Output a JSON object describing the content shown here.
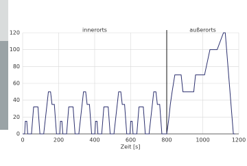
{
  "chart_data": {
    "type": "line",
    "x_label": "Zeit [s]",
    "annotations": [
      {
        "text": "innerorts",
        "x": 400
      },
      {
        "text": "außerorts",
        "x": 1000
      }
    ],
    "divider_x": 800,
    "series": [
      {
        "color": "#2b2f6e",
        "x": [
          0,
          11,
          15,
          23,
          28,
          49,
          61,
          85,
          96,
          117,
          143,
          155,
          163,
          176,
          188,
          195,
          206,
          210,
          218,
          223,
          244,
          256,
          280,
          291,
          312,
          338,
          350,
          358,
          371,
          383,
          390,
          401,
          405,
          413,
          418,
          439,
          451,
          475,
          486,
          507,
          533,
          545,
          553,
          566,
          578,
          585,
          596,
          600,
          608,
          613,
          634,
          646,
          670,
          681,
          702,
          728,
          740,
          748,
          761,
          773,
          780,
          800,
          810,
          820,
          830,
          845,
          880,
          890,
          950,
          960,
          1010,
          1040,
          1080,
          1115,
          1125,
          1170,
          1180
        ],
        "values": [
          0,
          0,
          15,
          15,
          0,
          0,
          32,
          32,
          0,
          0,
          50,
          50,
          35,
          35,
          0,
          0,
          0,
          15,
          15,
          0,
          0,
          32,
          32,
          0,
          0,
          50,
          50,
          35,
          35,
          0,
          0,
          0,
          15,
          15,
          0,
          0,
          32,
          32,
          0,
          0,
          50,
          50,
          35,
          35,
          0,
          0,
          0,
          15,
          15,
          0,
          0,
          32,
          32,
          0,
          0,
          50,
          50,
          35,
          35,
          0,
          0,
          0,
          15,
          35,
          50,
          70,
          70,
          50,
          50,
          70,
          70,
          100,
          100,
          120,
          120,
          0,
          0
        ]
      }
    ],
    "xlim": [
      0,
      1200
    ],
    "ylim": [
      0,
      120
    ],
    "xticks": [
      0,
      200,
      400,
      600,
      800,
      1000,
      1200
    ],
    "yticks": [
      0,
      20,
      40,
      60,
      80,
      100,
      120
    ],
    "grid": true
  }
}
